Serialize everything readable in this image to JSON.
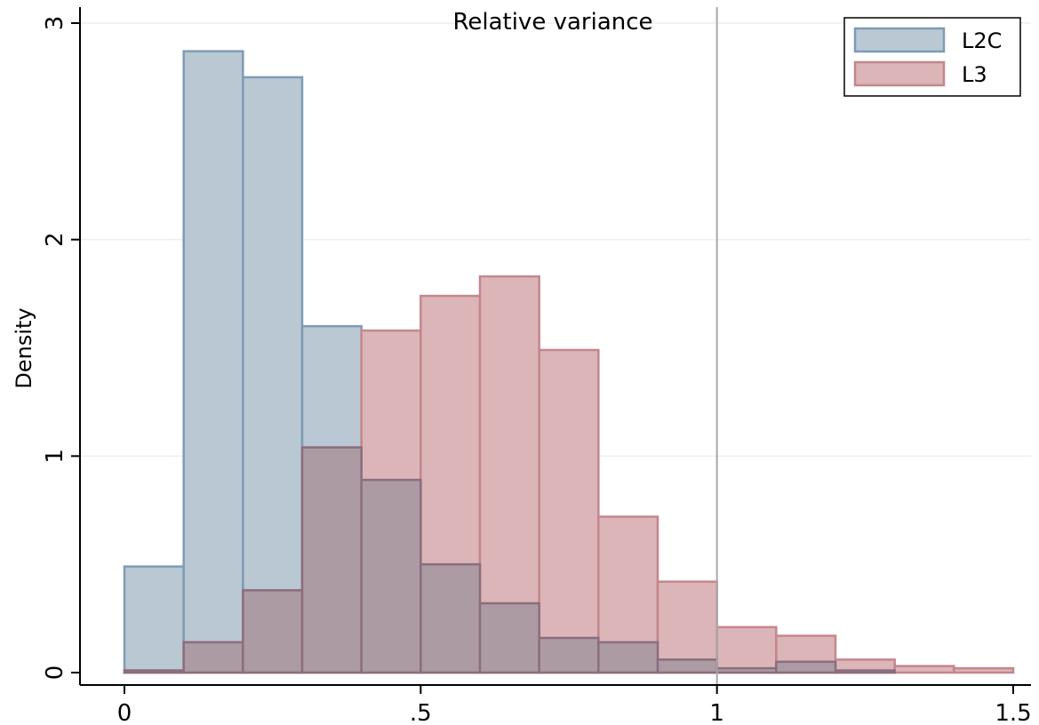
{
  "chart_data": {
    "type": "bar",
    "title": "Relative variance",
    "xlabel": "",
    "ylabel": "Density",
    "xlim": [
      0,
      1.5
    ],
    "ylim": [
      0,
      3
    ],
    "x_ticks": [
      {
        "value": 0,
        "label": "0"
      },
      {
        "value": 0.5,
        "label": ".5"
      },
      {
        "value": 1,
        "label": "1"
      },
      {
        "value": 1.5,
        "label": "1.5"
      }
    ],
    "y_ticks": [
      {
        "value": 0,
        "label": "0"
      },
      {
        "value": 1,
        "label": "1"
      },
      {
        "value": 2,
        "label": "2"
      },
      {
        "value": 3,
        "label": "3"
      }
    ],
    "reference_line_x": 1,
    "grid": "horizontal",
    "legend_position": "top-right",
    "bin_width": 0.1,
    "bin_starts": [
      0,
      0.1,
      0.2,
      0.3,
      0.4,
      0.5,
      0.6,
      0.7,
      0.8,
      0.9,
      1.0,
      1.1,
      1.2,
      1.3,
      1.4
    ],
    "series": [
      {
        "name": "L2C",
        "fill": "#b9c8d3",
        "stroke": "#7f9bb6",
        "values": [
          0.49,
          2.87,
          2.75,
          1.6,
          0.89,
          0.5,
          0.32,
          0.16,
          0.14,
          0.06,
          0.02,
          0.05,
          0.01,
          0,
          0
        ]
      },
      {
        "name": "L3",
        "fill": "#dbb5b8",
        "stroke": "#c4868d",
        "values": [
          0.01,
          0.14,
          0.38,
          1.04,
          1.58,
          1.74,
          1.83,
          1.49,
          0.72,
          0.42,
          0.21,
          0.17,
          0.06,
          0.03,
          0.02
        ]
      }
    ],
    "overlap_fill": "#ad9ba4",
    "overlap_stroke": "#8a6e7e"
  }
}
